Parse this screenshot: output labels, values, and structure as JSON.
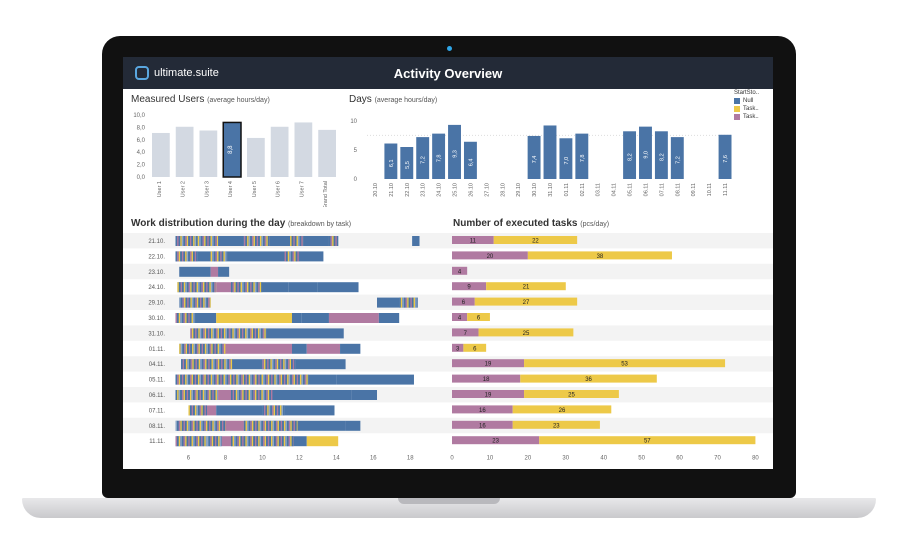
{
  "app": {
    "logo_text": "ultimate.suite",
    "title": "Activity Overview"
  },
  "colors": {
    "blue": "#4a74a6",
    "yellow": "#edc948",
    "purple": "#b07aa1",
    "gray": "#d3d9e2",
    "header": "#232a37"
  },
  "measured_users": {
    "title": "Measured Users",
    "subtitle": "(average hours/day)",
    "chart_data": {
      "type": "bar",
      "categories": [
        "User 1",
        "User 2",
        "User 3",
        "User 4",
        "User 5",
        "User 6",
        "User 7",
        "Grand Total"
      ],
      "values": [
        7.1,
        8.1,
        7.5,
        8.8,
        6.3,
        8.1,
        8.8,
        7.6
      ],
      "value_labels": [
        "",
        "",
        "",
        "8,8",
        "",
        "",
        "",
        ""
      ],
      "y_ticks": [
        "10,0",
        "8,0",
        "6,0",
        "4,0",
        "2,0",
        "0,0"
      ],
      "ylim": [
        0,
        10
      ],
      "highlighted": "User 4"
    }
  },
  "days": {
    "title": "Days",
    "subtitle": "(average hours/day)",
    "chart_data": {
      "type": "bar",
      "categories": [
        "20.10",
        "21.10",
        "22.10",
        "23.10",
        "24.10",
        "25.10",
        "26.10",
        "27.10",
        "28.10",
        "29.10",
        "30.10",
        "31.10",
        "01.11",
        "02.11",
        "03.11",
        "04.11",
        "05.11",
        "06.11",
        "07.11",
        "08.11",
        "09.11",
        "10.11",
        "11.11"
      ],
      "values": [
        null,
        6.1,
        5.5,
        7.2,
        7.8,
        9.3,
        6.4,
        null,
        null,
        null,
        7.4,
        9.2,
        7.0,
        7.8,
        null,
        null,
        8.2,
        9.0,
        8.2,
        7.2,
        null,
        null,
        7.6
      ],
      "value_labels": [
        "",
        "6,1",
        "5,5",
        "7,2",
        "7,8",
        "9,3",
        "6,4",
        "",
        "",
        "",
        "7,4",
        "",
        "7,0",
        "7,8",
        "",
        "",
        "8,2",
        "9,0",
        "8,2",
        "7,2",
        "",
        "",
        "7,6"
      ],
      "y_ticks": [
        "10",
        "5",
        "0"
      ],
      "ylim": [
        0,
        11
      ]
    },
    "legend": {
      "title": "StartSto..",
      "items": [
        {
          "label": "Null",
          "color": "#4a74a6"
        },
        {
          "label": "Task..",
          "color": "#edc948"
        },
        {
          "label": "Task..",
          "color": "#b07aa1"
        }
      ]
    }
  },
  "work_distribution": {
    "title": "Work distribution during the day",
    "subtitle": "(breakdown by task)",
    "chart_data": {
      "type": "bar",
      "orientation": "horizontal-timeline",
      "x_ticks": [
        "6",
        "8",
        "10",
        "12",
        "14",
        "16",
        "18"
      ],
      "xlim": [
        5,
        19.5
      ],
      "rows": [
        {
          "label": "21.10.",
          "segments": [
            [
              5.3,
              6.5,
              "mixed"
            ],
            [
              6.5,
              7.6,
              "mixed"
            ],
            [
              7.6,
              9.0,
              "blue"
            ],
            [
              9.0,
              10.4,
              "mixed"
            ],
            [
              10.4,
              11.5,
              "blue"
            ],
            [
              11.5,
              12.2,
              "mixed"
            ],
            [
              12.2,
              13.6,
              "blue"
            ],
            [
              13.6,
              14.1,
              "mixed"
            ],
            [
              18.1,
              18.5,
              "blue"
            ]
          ]
        },
        {
          "label": "22.10.",
          "segments": [
            [
              5.3,
              6.5,
              "mixed"
            ],
            [
              6.5,
              7.2,
              "blue"
            ],
            [
              7.2,
              8.1,
              "mixed"
            ],
            [
              8.1,
              11.2,
              "blue"
            ],
            [
              11.2,
              12.0,
              "mixed"
            ],
            [
              12.0,
              13.3,
              "blue"
            ]
          ]
        },
        {
          "label": "23.10.",
          "segments": [
            [
              5.5,
              7.2,
              "blue"
            ],
            [
              7.2,
              7.6,
              "purple"
            ],
            [
              7.6,
              8.2,
              "blue"
            ]
          ]
        },
        {
          "label": "24.10.",
          "segments": [
            [
              5.4,
              7.5,
              "mixed"
            ],
            [
              7.5,
              8.3,
              "purple"
            ],
            [
              8.3,
              10.0,
              "mixed"
            ],
            [
              10.0,
              11.4,
              "blue"
            ],
            [
              11.4,
              13.0,
              "blue"
            ],
            [
              13.0,
              15.2,
              "blue"
            ]
          ]
        },
        {
          "label": "29.10.",
          "segments": [
            [
              5.5,
              7.2,
              "mixed"
            ],
            [
              16.2,
              17.4,
              "blue"
            ],
            [
              17.4,
              18.4,
              "mixed"
            ]
          ]
        },
        {
          "label": "30.10.",
          "segments": [
            [
              5.3,
              6.4,
              "mixed"
            ],
            [
              6.4,
              7.5,
              "blue"
            ],
            [
              7.5,
              11.6,
              "yellow"
            ],
            [
              11.6,
              12.1,
              "blue"
            ],
            [
              12.1,
              13.6,
              "blue"
            ],
            [
              13.6,
              16.3,
              "purple"
            ],
            [
              16.3,
              17.4,
              "blue"
            ]
          ]
        },
        {
          "label": "31.10.",
          "segments": [
            [
              6.1,
              8.2,
              "mixed"
            ],
            [
              8.2,
              10.2,
              "mixed"
            ],
            [
              10.2,
              14.4,
              "blue"
            ]
          ]
        },
        {
          "label": "01.11.",
          "segments": [
            [
              5.5,
              8.0,
              "mixed"
            ],
            [
              8.0,
              11.6,
              "purple"
            ],
            [
              11.6,
              12.4,
              "blue"
            ],
            [
              12.4,
              14.2,
              "purple"
            ],
            [
              14.2,
              15.3,
              "blue"
            ]
          ]
        },
        {
          "label": "04.11.",
          "segments": [
            [
              5.6,
              8.4,
              "mixed"
            ],
            [
              8.4,
              10.0,
              "blue"
            ],
            [
              10.0,
              11.8,
              "mixed"
            ],
            [
              11.8,
              14.5,
              "blue"
            ]
          ]
        },
        {
          "label": "05.11.",
          "segments": [
            [
              5.3,
              9.0,
              "mixed"
            ],
            [
              9.0,
              12.5,
              "mixed"
            ],
            [
              12.5,
              14.0,
              "blue"
            ],
            [
              14.0,
              18.2,
              "blue"
            ]
          ]
        },
        {
          "label": "06.11.",
          "segments": [
            [
              5.3,
              7.6,
              "mixed"
            ],
            [
              7.6,
              8.3,
              "purple"
            ],
            [
              8.3,
              10.6,
              "mixed"
            ],
            [
              10.6,
              14.8,
              "blue"
            ],
            [
              14.8,
              16.2,
              "blue"
            ]
          ]
        },
        {
          "label": "07.11.",
          "segments": [
            [
              6.0,
              7.0,
              "mixed"
            ],
            [
              7.0,
              7.5,
              "purple"
            ],
            [
              7.5,
              10.0,
              "blue"
            ],
            [
              10.0,
              11.2,
              "mixed"
            ],
            [
              11.2,
              13.9,
              "blue"
            ]
          ]
        },
        {
          "label": "08.11.",
          "segments": [
            [
              5.3,
              8.0,
              "mixed"
            ],
            [
              8.0,
              9.0,
              "purple"
            ],
            [
              9.0,
              11.9,
              "mixed"
            ],
            [
              11.9,
              14.5,
              "blue"
            ],
            [
              14.5,
              15.3,
              "blue"
            ]
          ]
        },
        {
          "label": "11.11.",
          "segments": [
            [
              5.3,
              7.0,
              "mixed"
            ],
            [
              7.0,
              7.8,
              "mixed"
            ],
            [
              7.8,
              8.3,
              "purple"
            ],
            [
              8.3,
              11.7,
              "mixed"
            ],
            [
              11.7,
              12.4,
              "blue"
            ],
            [
              12.4,
              14.1,
              "yellow"
            ]
          ]
        }
      ]
    }
  },
  "executed_tasks": {
    "title": "Number of executed tasks",
    "subtitle": "(pcs/day)",
    "chart_data": {
      "type": "bar",
      "orientation": "horizontal-stacked",
      "x_ticks": [
        "0",
        "10",
        "20",
        "30",
        "40",
        "50",
        "60",
        "70",
        "80"
      ],
      "xlim": [
        0,
        82
      ],
      "series": [
        {
          "name": "Task..",
          "color": "purple"
        },
        {
          "name": "Task..",
          "color": "yellow"
        }
      ],
      "rows": [
        {
          "label": "21.10.",
          "values": [
            11,
            22
          ]
        },
        {
          "label": "22.10.",
          "values": [
            20,
            38
          ]
        },
        {
          "label": "23.10.",
          "values": [
            4,
            0
          ]
        },
        {
          "label": "24.10.",
          "values": [
            9,
            21
          ]
        },
        {
          "label": "29.10.",
          "values": [
            6,
            27
          ]
        },
        {
          "label": "30.10.",
          "values": [
            4,
            6
          ]
        },
        {
          "label": "31.10.",
          "values": [
            7,
            25
          ]
        },
        {
          "label": "01.11.",
          "values": [
            3,
            6
          ]
        },
        {
          "label": "04.11.",
          "values": [
            19,
            53
          ]
        },
        {
          "label": "05.11.",
          "values": [
            18,
            36
          ]
        },
        {
          "label": "06.11.",
          "values": [
            19,
            25
          ]
        },
        {
          "label": "07.11.",
          "values": [
            16,
            26
          ]
        },
        {
          "label": "08.11.",
          "values": [
            16,
            23
          ]
        },
        {
          "label": "11.11.",
          "values": [
            23,
            57
          ]
        }
      ]
    }
  }
}
